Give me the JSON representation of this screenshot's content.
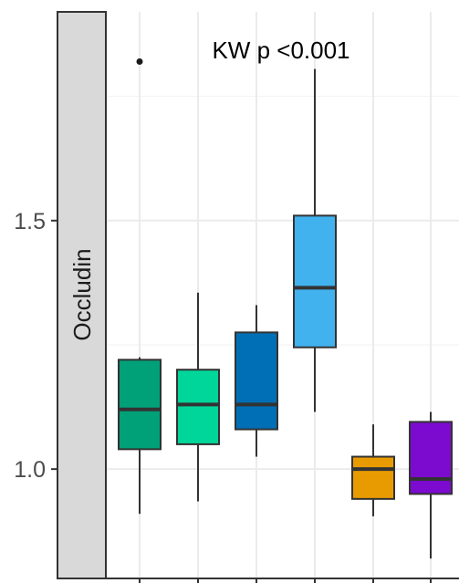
{
  "chart_data": {
    "type": "boxplot",
    "facet_label": "Occludin",
    "annotation": "KW p <0.001",
    "ylim": [
      0.78,
      1.92
    ],
    "y_ticks": [
      1.0,
      1.5
    ],
    "y_tick_labels": [
      "1.0",
      "1.5"
    ],
    "grid": true,
    "boxes": [
      {
        "color": "#00A079",
        "whisker_low": 0.91,
        "q1": 1.04,
        "median": 1.12,
        "q3": 1.22,
        "whisker_high": 1.225,
        "outliers": [
          1.82
        ]
      },
      {
        "color": "#00D59A",
        "whisker_low": 0.935,
        "q1": 1.05,
        "median": 1.13,
        "q3": 1.2,
        "whisker_high": 1.355,
        "outliers": []
      },
      {
        "color": "#006FB5",
        "whisker_low": 1.025,
        "q1": 1.08,
        "median": 1.13,
        "q3": 1.275,
        "whisker_high": 1.33,
        "outliers": []
      },
      {
        "color": "#41B2EE",
        "whisker_low": 1.115,
        "q1": 1.245,
        "median": 1.365,
        "q3": 1.51,
        "whisker_high": 1.805,
        "outliers": []
      },
      {
        "color": "#E89B00",
        "whisker_low": 0.905,
        "q1": 0.94,
        "median": 1.0,
        "q3": 1.025,
        "whisker_high": 1.09,
        "outliers": []
      },
      {
        "color": "#7C0ACF",
        "whisker_low": 0.82,
        "q1": 0.95,
        "median": 0.98,
        "q3": 1.095,
        "whisker_high": 1.115,
        "outliers": []
      }
    ]
  }
}
